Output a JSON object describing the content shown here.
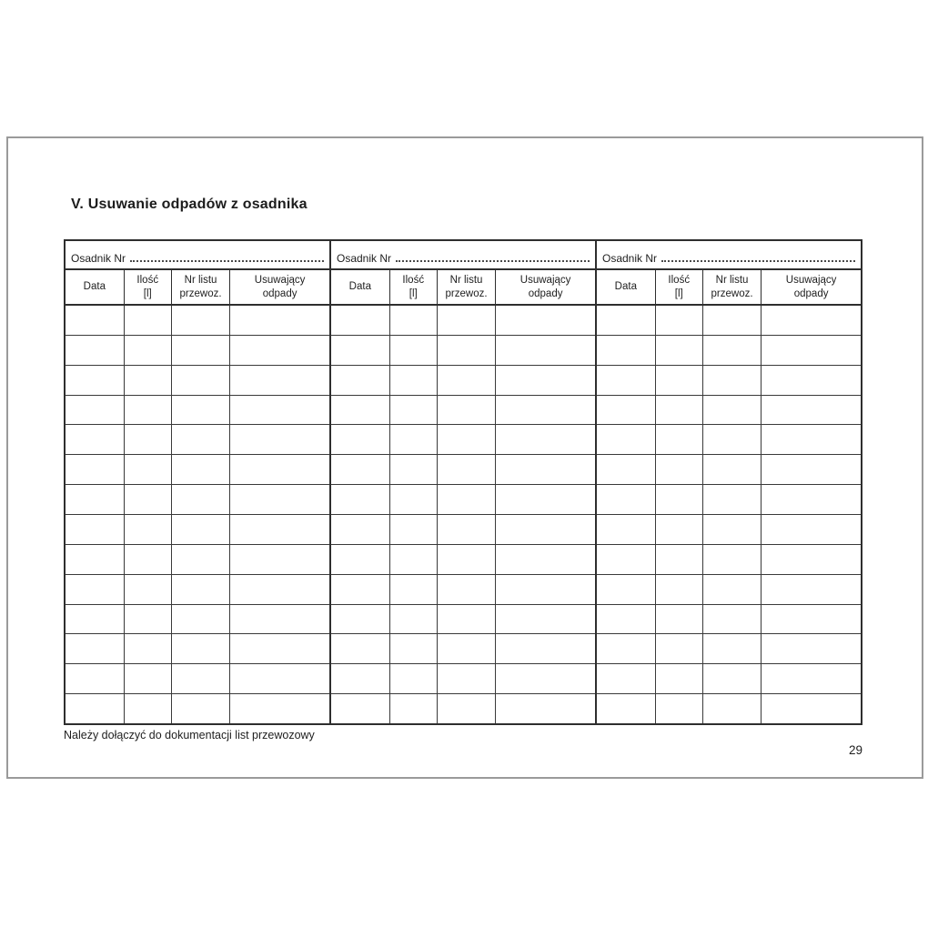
{
  "title": "V. Usuwanie odpadów z osadnika",
  "table": {
    "sections": [
      {
        "header_label": "Osadnik Nr"
      },
      {
        "header_label": "Osadnik Nr"
      },
      {
        "header_label": "Osadnik Nr"
      }
    ],
    "columns": [
      "Data",
      "Ilość\n[l]",
      "Nr listu\nprzewoz.",
      "Usuwający\nodpady"
    ],
    "body_row_count": 14
  },
  "footer": {
    "note": "Należy dołączyć do dokumentacji list przewozowy"
  },
  "page": {
    "number": "29"
  }
}
